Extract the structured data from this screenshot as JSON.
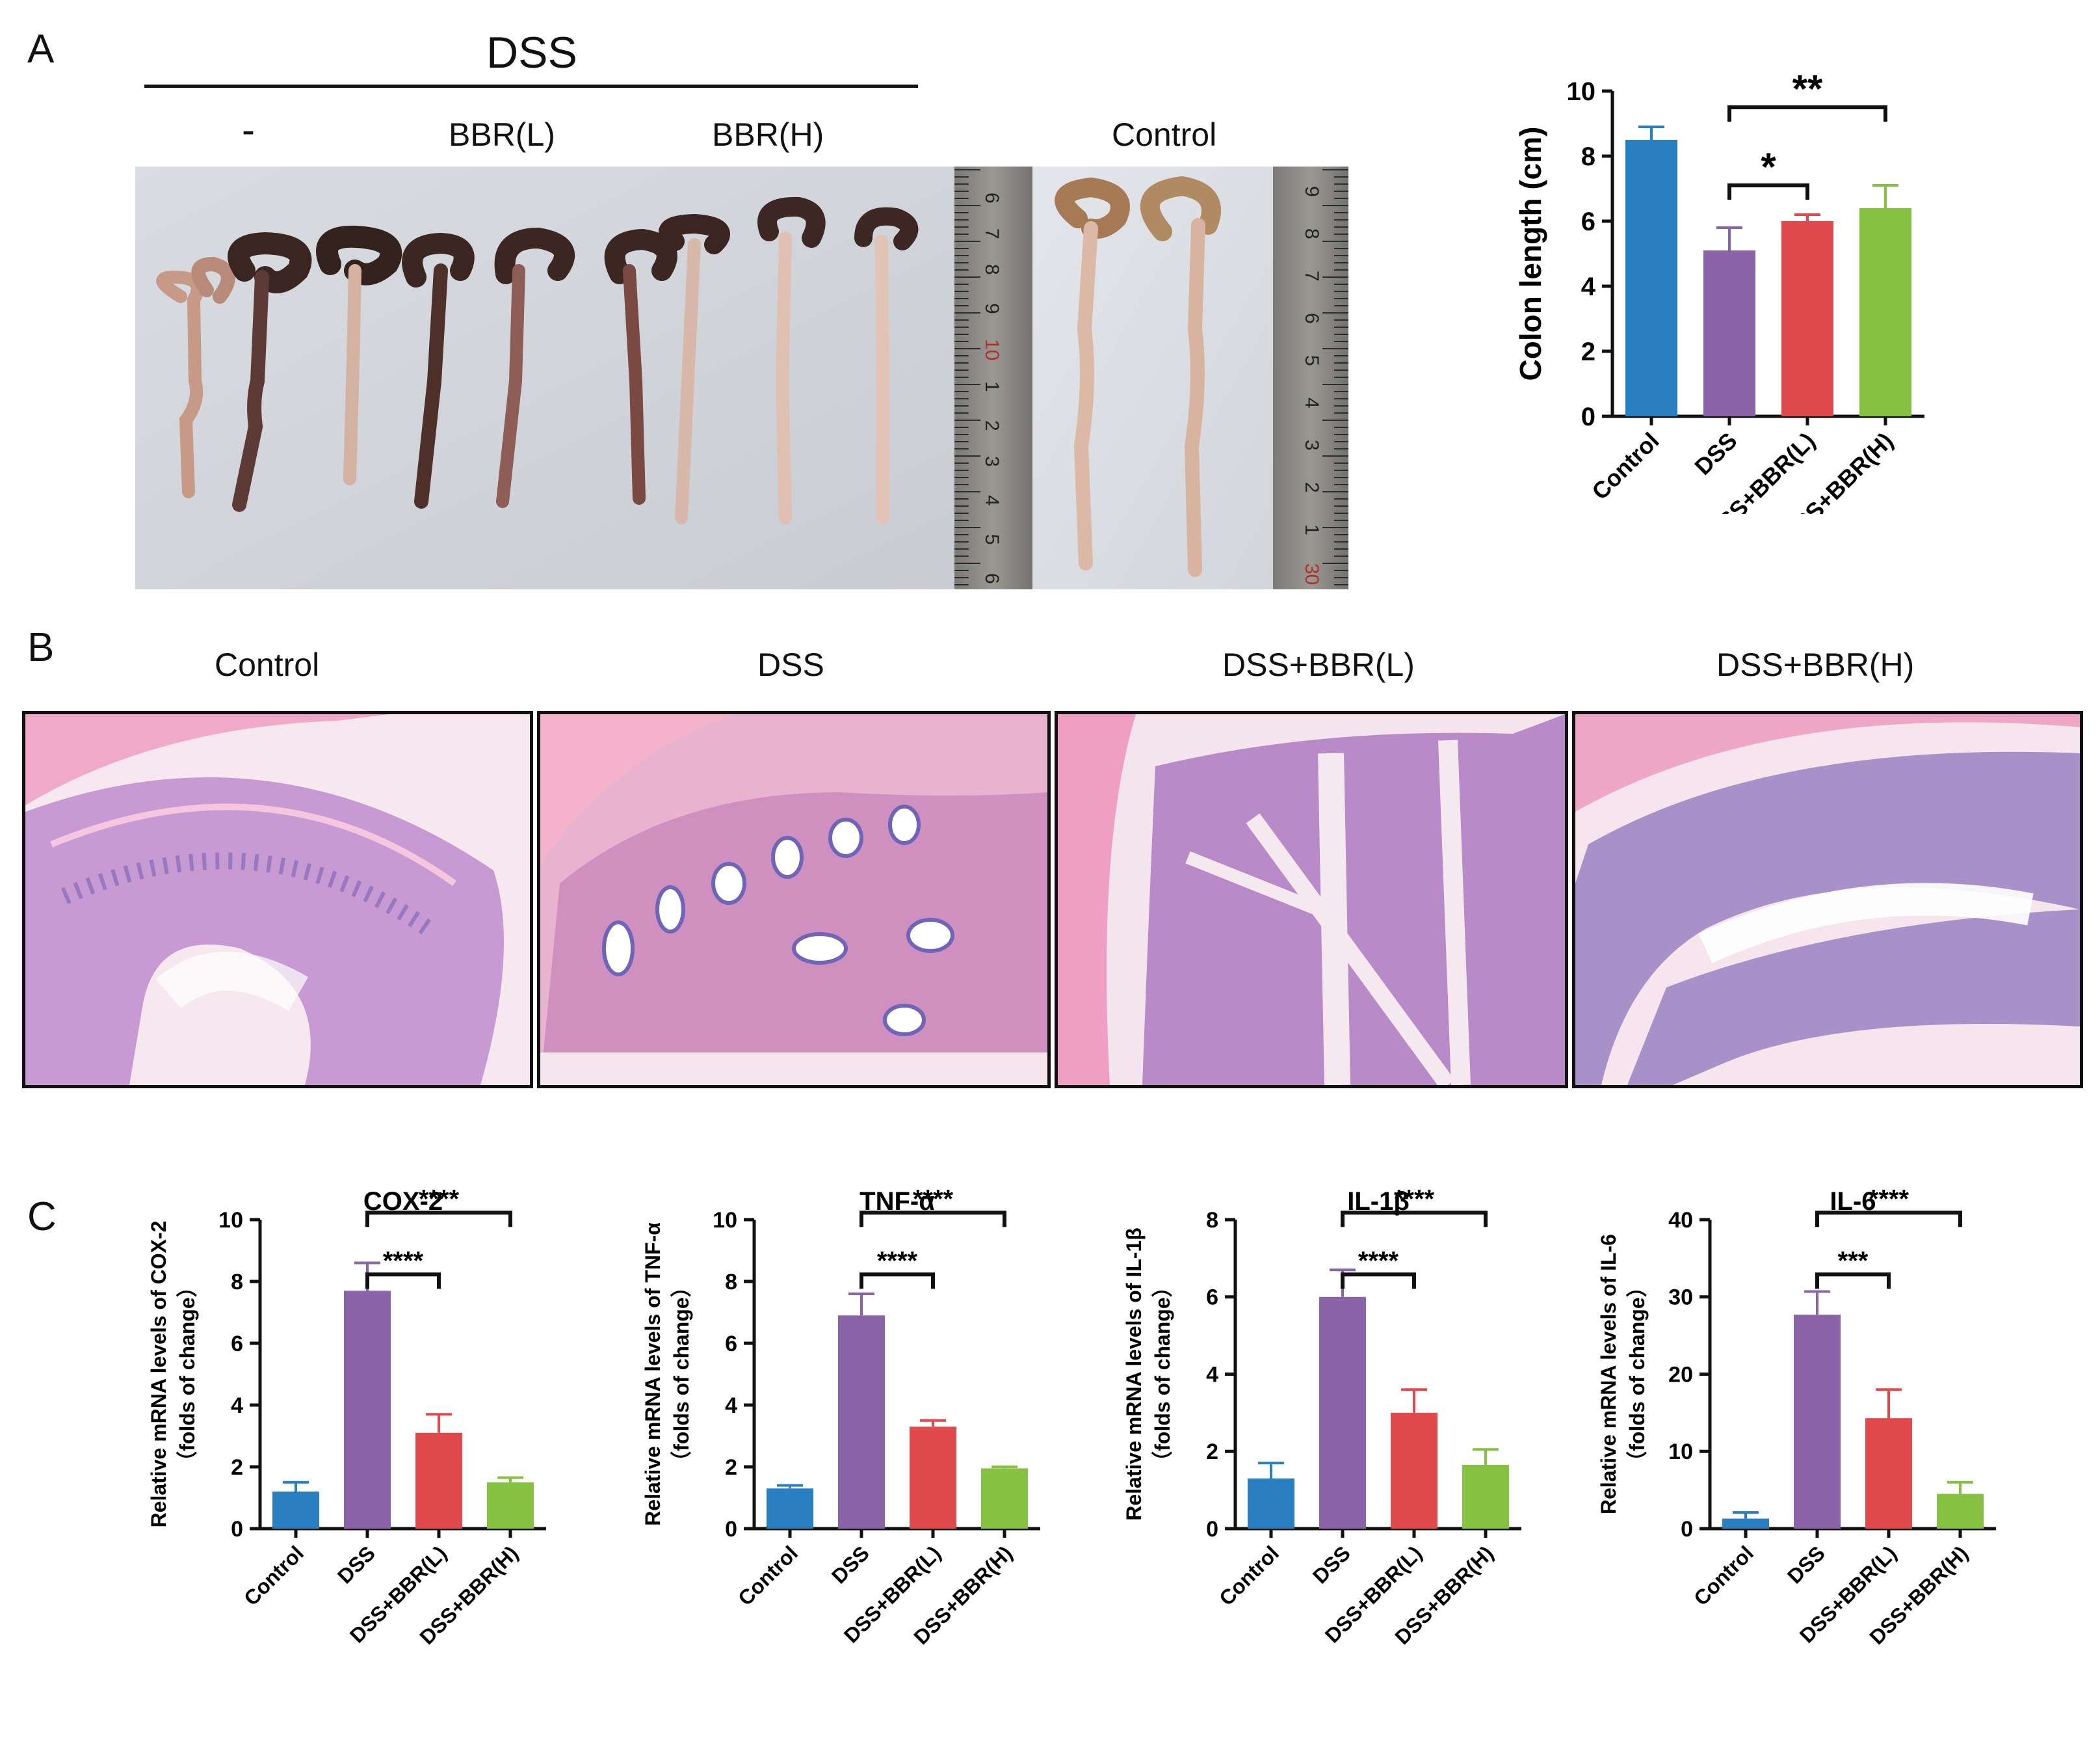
{
  "panels": {
    "A": {
      "letter": "A",
      "dss_header": "DSS",
      "group_labels": [
        "-",
        "BBR(L)",
        "BBR(H)",
        "Control"
      ]
    },
    "B": {
      "letter": "B",
      "titles": [
        "Control",
        "DSS",
        "DSS+BBR(L)",
        "DSS+BBR(H)"
      ]
    },
    "C": {
      "letter": "C"
    }
  },
  "colors": {
    "control": "#2a7fc1",
    "dss": "#8b63a8",
    "bbr_l": "#e04a4c",
    "bbr_h": "#86c142"
  },
  "chart_data": [
    {
      "id": "colon-length",
      "type": "bar",
      "categories": [
        "Control",
        "DSS",
        "DSS+BBR(L)",
        "DSS+BBR(H)"
      ],
      "values": [
        8.5,
        5.1,
        6.0,
        6.4
      ],
      "errors": [
        0.4,
        0.7,
        0.2,
        0.7
      ],
      "ylabel": "Colon length (cm)",
      "ylim": [
        0,
        10
      ],
      "yticks": [
        0,
        2,
        4,
        6,
        8,
        10
      ],
      "significance": [
        {
          "from": 1,
          "to": 2,
          "label": "*"
        },
        {
          "from": 1,
          "to": 3,
          "label": "**"
        }
      ]
    },
    {
      "id": "cox2",
      "type": "bar",
      "title": "COX-2",
      "categories": [
        "Control",
        "DSS",
        "DSS+BBR(L)",
        "DSS+BBR(H)"
      ],
      "values": [
        1.2,
        7.7,
        3.1,
        1.5
      ],
      "errors": [
        0.3,
        0.9,
        0.6,
        0.15
      ],
      "ylabel": [
        "Relative mRNA levels of COX-2",
        "（folds of change）"
      ],
      "ylim": [
        0,
        10
      ],
      "yticks": [
        0,
        2,
        4,
        6,
        8,
        10
      ],
      "significance": [
        {
          "from": 1,
          "to": 2,
          "label": "****"
        },
        {
          "from": 1,
          "to": 3,
          "label": "****"
        }
      ]
    },
    {
      "id": "tnfa",
      "type": "bar",
      "title": "TNF-α",
      "categories": [
        "Control",
        "DSS",
        "DSS+BBR(L)",
        "DSS+BBR(H)"
      ],
      "values": [
        1.3,
        6.9,
        3.3,
        1.95
      ],
      "errors": [
        0.1,
        0.7,
        0.2,
        0.05
      ],
      "ylabel": [
        "Relative mRNA levels of TNF-α",
        "（folds of change）"
      ],
      "ylim": [
        0,
        10
      ],
      "yticks": [
        0,
        2,
        4,
        6,
        8,
        10
      ],
      "significance": [
        {
          "from": 1,
          "to": 2,
          "label": "****"
        },
        {
          "from": 1,
          "to": 3,
          "label": "****"
        }
      ]
    },
    {
      "id": "il1b",
      "type": "bar",
      "title": "IL-1β",
      "categories": [
        "Control",
        "DSS",
        "DSS+BBR(L)",
        "DSS+BBR(H)"
      ],
      "values": [
        1.3,
        6.0,
        3.0,
        1.65
      ],
      "errors": [
        0.4,
        0.7,
        0.6,
        0.4
      ],
      "ylabel": [
        "Relative mRNA levels of IL-1β",
        "（folds of change）"
      ],
      "ylim": [
        0,
        8
      ],
      "yticks": [
        0,
        2,
        4,
        6,
        8
      ],
      "significance": [
        {
          "from": 1,
          "to": 2,
          "label": "****"
        },
        {
          "from": 1,
          "to": 3,
          "label": "****"
        }
      ]
    },
    {
      "id": "il6",
      "type": "bar",
      "title": "IL-6",
      "categories": [
        "Control",
        "DSS",
        "DSS+BBR(L)",
        "DSS+BBR(H)"
      ],
      "values": [
        1.3,
        27.7,
        14.3,
        4.5
      ],
      "errors": [
        0.8,
        3.0,
        3.7,
        1.5
      ],
      "ylabel": [
        "Relative mRNA levels of IL-6",
        "（folds of change）"
      ],
      "ylim": [
        0,
        40
      ],
      "yticks": [
        0,
        10,
        20,
        30,
        40
      ],
      "significance": [
        {
          "from": 1,
          "to": 2,
          "label": "***"
        },
        {
          "from": 1,
          "to": 3,
          "label": "****"
        }
      ]
    }
  ]
}
